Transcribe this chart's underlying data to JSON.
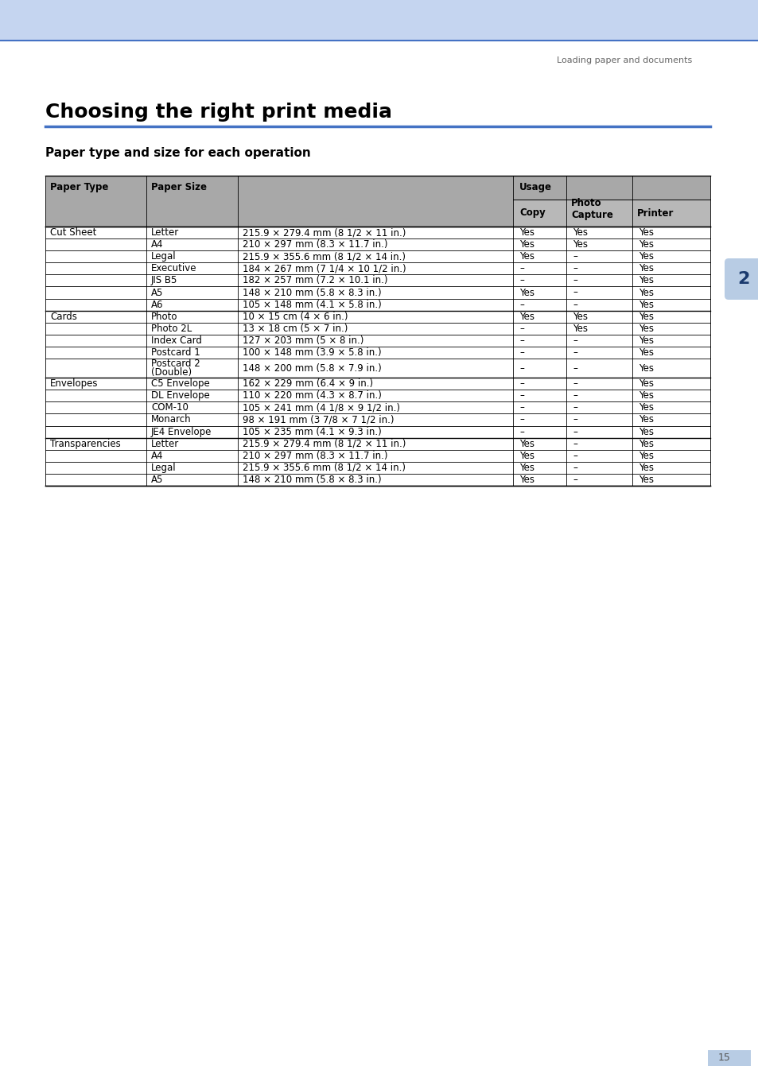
{
  "page_title": "Choosing the right print media",
  "section_title": "Paper type and size for each operation",
  "header_text": "Loading paper and documents",
  "page_number": "15",
  "chapter_number": "2",
  "bg_color": "#ffffff",
  "header_bg_color": "#c5d5f0",
  "header_line_color": "#4472c4",
  "table_header_bg": "#a8a8a8",
  "table_subheader_bg": "#b8b8b8",
  "chapter_badge_color": "#b8cce4",
  "table_data": [
    [
      "Cut Sheet",
      "Letter",
      "215.9 × 279.4 mm (8 1/2 × 11 in.)",
      "Yes",
      "Yes",
      "Yes"
    ],
    [
      "",
      "A4",
      "210 × 297 mm (8.3 × 11.7 in.)",
      "Yes",
      "Yes",
      "Yes"
    ],
    [
      "",
      "Legal",
      "215.9 × 355.6 mm (8 1/2 × 14 in.)",
      "Yes",
      "–",
      "Yes"
    ],
    [
      "",
      "Executive",
      "184 × 267 mm (7 1/4 × 10 1/2 in.)",
      "–",
      "–",
      "Yes"
    ],
    [
      "",
      "JIS B5",
      "182 × 257 mm (7.2 × 10.1 in.)",
      "–",
      "–",
      "Yes"
    ],
    [
      "",
      "A5",
      "148 × 210 mm (5.8 × 8.3 in.)",
      "Yes",
      "–",
      "Yes"
    ],
    [
      "",
      "A6",
      "105 × 148 mm (4.1 × 5.8 in.)",
      "–",
      "–",
      "Yes"
    ],
    [
      "Cards",
      "Photo",
      "10 × 15 cm (4 × 6 in.)",
      "Yes",
      "Yes",
      "Yes"
    ],
    [
      "",
      "Photo 2L",
      "13 × 18 cm (5 × 7 in.)",
      "–",
      "Yes",
      "Yes"
    ],
    [
      "",
      "Index Card",
      "127 × 203 mm (5 × 8 in.)",
      "–",
      "–",
      "Yes"
    ],
    [
      "",
      "Postcard 1",
      "100 × 148 mm (3.9 × 5.8 in.)",
      "–",
      "–",
      "Yes"
    ],
    [
      "",
      "Postcard 2\n(Double)",
      "148 × 200 mm (5.8 × 7.9 in.)",
      "–",
      "–",
      "Yes"
    ],
    [
      "Envelopes",
      "C5 Envelope",
      "162 × 229 mm (6.4 × 9 in.)",
      "–",
      "–",
      "Yes"
    ],
    [
      "",
      "DL Envelope",
      "110 × 220 mm (4.3 × 8.7 in.)",
      "–",
      "–",
      "Yes"
    ],
    [
      "",
      "COM-10",
      "105 × 241 mm (4 1/8 × 9 1/2 in.)",
      "–",
      "–",
      "Yes"
    ],
    [
      "",
      "Monarch",
      "98 × 191 mm (3 7/8 × 7 1/2 in.)",
      "–",
      "–",
      "Yes"
    ],
    [
      "",
      "JE4 Envelope",
      "105 × 235 mm (4.1 × 9.3 in.)",
      "–",
      "–",
      "Yes"
    ],
    [
      "Transparencies",
      "Letter",
      "215.9 × 279.4 mm (8 1/2 × 11 in.)",
      "Yes",
      "–",
      "Yes"
    ],
    [
      "",
      "A4",
      "210 × 297 mm (8.3 × 11.7 in.)",
      "Yes",
      "–",
      "Yes"
    ],
    [
      "",
      "Legal",
      "215.9 × 355.6 mm (8 1/2 × 14 in.)",
      "Yes",
      "–",
      "Yes"
    ],
    [
      "",
      "A5",
      "148 × 210 mm (5.8 × 8.3 in.)",
      "Yes",
      "–",
      "Yes"
    ]
  ],
  "group_starts": [
    0,
    7,
    12,
    17
  ]
}
